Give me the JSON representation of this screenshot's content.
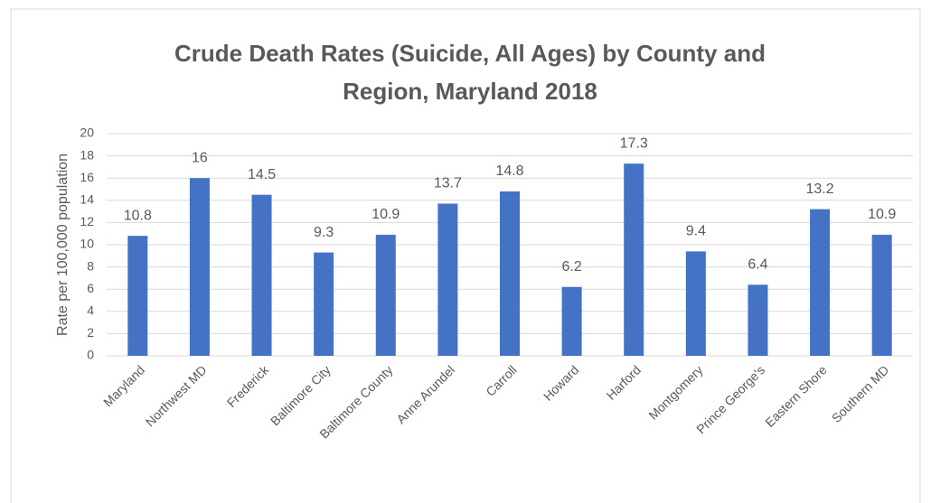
{
  "chart_data": {
    "type": "bar",
    "title": "Crude Death Rates (Suicide, All Ages) by County and Region, Maryland 2018",
    "y_label": "Rate per 100,000 population",
    "categories": [
      "Maryland",
      "Northwest MD",
      "Frederick",
      "Baltimore City",
      "Baltimore County",
      "Anne Arundel",
      "Carroll",
      "Howard",
      "Harford",
      "Montgomery",
      "Prince George's",
      "Eastern Shore",
      "Southern MD"
    ],
    "values": [
      10.8,
      16,
      14.5,
      9.3,
      10.9,
      13.7,
      14.8,
      6.2,
      17.3,
      9.4,
      6.4,
      13.2,
      10.9
    ],
    "color": "#4472c4",
    "ylim": [
      0,
      20
    ],
    "yticks": [
      0,
      2,
      4,
      6,
      8,
      10,
      12,
      14,
      16,
      18,
      20
    ],
    "grid": true,
    "data_labels": true
  }
}
